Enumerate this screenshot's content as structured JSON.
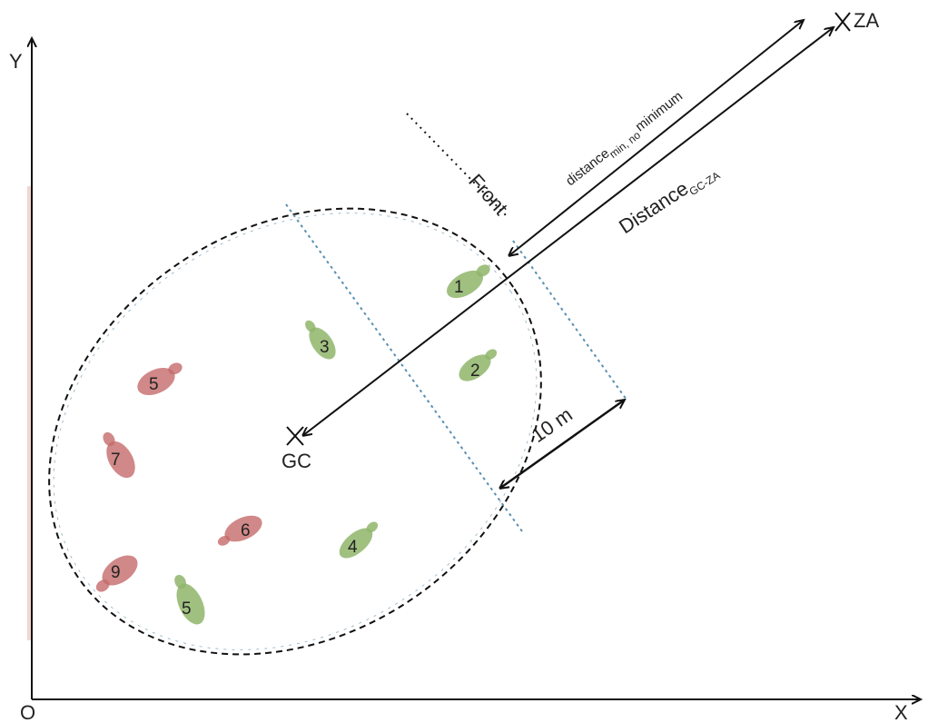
{
  "axes": {
    "y_label": "Y",
    "x_label": "X",
    "origin_label": "O"
  },
  "points": {
    "za_label": "ZA",
    "gc_label": "GC"
  },
  "labels": {
    "front": "Front",
    "distance_min": "distance",
    "distance_min_sub": "min, no",
    "distance_min_tail": "minimum",
    "distance_gc": "Distance",
    "distance_gc_sub": "GC-ZA",
    "scale": "10 m"
  },
  "animals": [
    {
      "number": "1",
      "group": "green"
    },
    {
      "number": "2",
      "group": "green"
    },
    {
      "number": "3",
      "group": "green"
    },
    {
      "number": "4",
      "group": "green"
    },
    {
      "number": "5",
      "group": "green"
    },
    {
      "number": "5",
      "group": "red"
    },
    {
      "number": "6",
      "group": "red"
    },
    {
      "number": "7",
      "group": "red"
    },
    {
      "number": "9",
      "group": "red"
    }
  ],
  "colors": {
    "green": "#8fb56a",
    "red": "#c46a6a",
    "dashed_blue": "#5b8fb0",
    "line": "#111111"
  }
}
